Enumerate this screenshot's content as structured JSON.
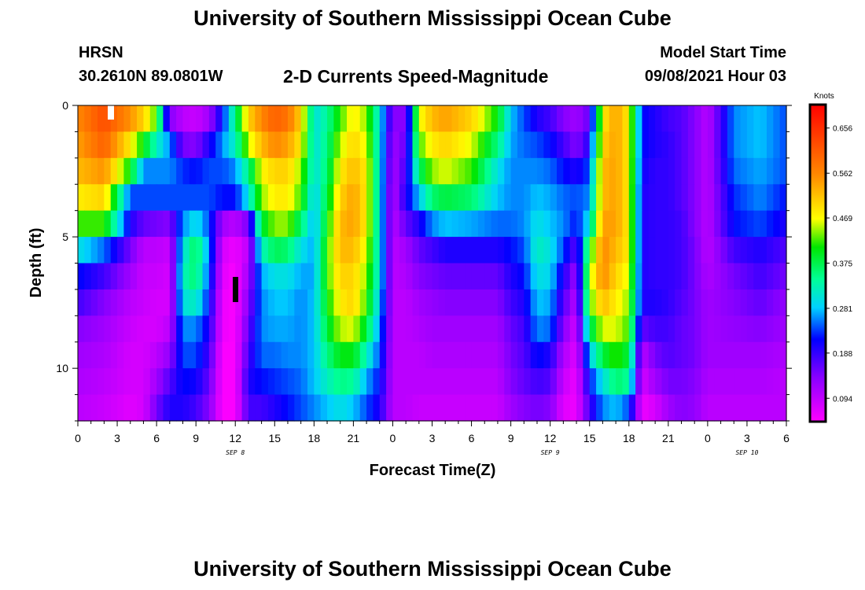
{
  "header": {
    "title": "University of Southern Mississippi Ocean Cube",
    "footer_title": "University of Southern Mississippi Ocean Cube",
    "station": "HRSN",
    "coords": "30.2610N  89.0801W",
    "plot_title": "2-D Currents Speed-Magnitude",
    "model_label": "Model Start Time",
    "model_time": "09/08/2021 Hour 03"
  },
  "chart_data": {
    "type": "heatmap",
    "title": "2-D Currents Speed-Magnitude",
    "xlabel": "Forecast Time(Z)",
    "ylabel": "Depth (ft)",
    "x_tick_labels": [
      "0",
      "3",
      "6",
      "9",
      "12",
      "15",
      "18",
      "21",
      "0",
      "3",
      "6",
      "9",
      "12",
      "15",
      "18",
      "21",
      "0",
      "3",
      "6"
    ],
    "x_hours": [
      0,
      54
    ],
    "y_ticks": [
      0,
      5,
      10
    ],
    "y_range": [
      0,
      12
    ],
    "date_labels": [
      {
        "text": "SEP 8",
        "hour": 12
      },
      {
        "text": "SEP 9",
        "hour": 36
      },
      {
        "text": "SEP 10",
        "hour": 51
      }
    ],
    "colorbar": {
      "unit": "Knots",
      "min": 0.047,
      "max": 0.703,
      "tick_values": [
        0.094,
        0.188,
        0.281,
        0.375,
        0.469,
        0.562,
        0.656
      ],
      "tick_labels": [
        "0.094",
        "0.188",
        "0.281",
        "0.375",
        "0.469",
        "0.562",
        "0.656"
      ]
    },
    "depth_rows": [
      0.5,
      1.5,
      2.5,
      3.5,
      4.5,
      5.5,
      6.5,
      7.5,
      8.5,
      9.5,
      10.5,
      11.5
    ],
    "profile_hours": [
      0,
      2,
      4,
      5,
      6,
      7,
      8,
      9,
      10,
      11,
      12,
      13,
      14,
      15,
      16,
      17,
      18,
      19,
      20,
      21,
      22,
      23,
      24,
      25,
      26,
      27,
      28,
      30,
      32,
      33,
      34,
      35,
      36,
      37,
      38,
      39,
      40,
      41,
      42,
      43,
      44,
      45,
      46,
      47,
      48,
      50,
      52,
      54
    ],
    "profiles": [
      [
        0.56,
        0.54,
        0.52,
        0.48,
        0.42,
        0.3,
        0.22,
        0.18,
        0.14,
        0.12,
        0.11,
        0.1
      ],
      [
        0.62,
        0.6,
        0.55,
        0.5,
        0.42,
        0.25,
        0.18,
        0.14,
        0.12,
        0.11,
        0.1,
        0.09
      ],
      [
        0.55,
        0.48,
        0.4,
        0.24,
        0.2,
        0.15,
        0.12,
        0.1,
        0.09,
        0.08,
        0.08,
        0.07
      ],
      [
        0.5,
        0.4,
        0.26,
        0.24,
        0.16,
        0.1,
        0.09,
        0.09,
        0.08,
        0.08,
        0.08,
        0.08
      ],
      [
        0.42,
        0.32,
        0.26,
        0.24,
        0.15,
        0.1,
        0.09,
        0.08,
        0.08,
        0.1,
        0.12,
        0.15
      ],
      [
        0.14,
        0.26,
        0.26,
        0.24,
        0.14,
        0.09,
        0.08,
        0.08,
        0.1,
        0.13,
        0.17,
        0.2
      ],
      [
        0.1,
        0.15,
        0.23,
        0.24,
        0.26,
        0.3,
        0.32,
        0.3,
        0.26,
        0.24,
        0.22,
        0.2
      ],
      [
        0.09,
        0.14,
        0.22,
        0.24,
        0.3,
        0.37,
        0.36,
        0.32,
        0.26,
        0.24,
        0.21,
        0.18
      ],
      [
        0.12,
        0.2,
        0.24,
        0.24,
        0.24,
        0.26,
        0.24,
        0.22,
        0.2,
        0.18,
        0.16,
        0.14
      ],
      [
        0.22,
        0.26,
        0.24,
        0.22,
        0.12,
        0.08,
        0.07,
        0.06,
        0.06,
        0.05,
        0.05,
        0.05
      ],
      [
        0.35,
        0.32,
        0.26,
        0.22,
        0.1,
        0.06,
        0.05,
        0.05,
        0.05,
        0.05,
        0.05,
        0.05
      ],
      [
        0.5,
        0.45,
        0.35,
        0.3,
        0.15,
        0.1,
        0.12,
        0.14,
        0.16,
        0.18,
        0.2,
        0.18
      ],
      [
        0.56,
        0.52,
        0.47,
        0.44,
        0.38,
        0.32,
        0.27,
        0.26,
        0.26,
        0.25,
        0.22,
        0.18
      ],
      [
        0.6,
        0.56,
        0.5,
        0.48,
        0.44,
        0.37,
        0.3,
        0.28,
        0.27,
        0.25,
        0.23,
        0.2
      ],
      [
        0.58,
        0.54,
        0.5,
        0.48,
        0.44,
        0.36,
        0.3,
        0.28,
        0.27,
        0.26,
        0.24,
        0.22
      ],
      [
        0.5,
        0.48,
        0.44,
        0.42,
        0.36,
        0.3,
        0.27,
        0.26,
        0.26,
        0.26,
        0.25,
        0.24
      ],
      [
        0.3,
        0.3,
        0.3,
        0.28,
        0.27,
        0.27,
        0.27,
        0.28,
        0.28,
        0.28,
        0.28,
        0.26
      ],
      [
        0.34,
        0.35,
        0.36,
        0.38,
        0.4,
        0.42,
        0.42,
        0.4,
        0.38,
        0.35,
        0.32,
        0.28
      ],
      [
        0.42,
        0.45,
        0.48,
        0.5,
        0.52,
        0.52,
        0.5,
        0.48,
        0.45,
        0.4,
        0.35,
        0.3
      ],
      [
        0.48,
        0.5,
        0.52,
        0.54,
        0.54,
        0.52,
        0.5,
        0.5,
        0.46,
        0.4,
        0.34,
        0.28
      ],
      [
        0.44,
        0.46,
        0.48,
        0.48,
        0.48,
        0.46,
        0.44,
        0.42,
        0.38,
        0.32,
        0.27,
        0.24
      ],
      [
        0.3,
        0.3,
        0.3,
        0.3,
        0.3,
        0.3,
        0.3,
        0.28,
        0.26,
        0.24,
        0.22,
        0.2
      ],
      [
        0.14,
        0.12,
        0.11,
        0.1,
        0.1,
        0.1,
        0.1,
        0.1,
        0.1,
        0.1,
        0.1,
        0.1
      ],
      [
        0.14,
        0.16,
        0.18,
        0.2,
        0.16,
        0.12,
        0.11,
        0.1,
        0.1,
        0.1,
        0.1,
        0.1
      ],
      [
        0.46,
        0.42,
        0.36,
        0.28,
        0.2,
        0.16,
        0.14,
        0.12,
        0.11,
        0.1,
        0.1,
        0.09
      ],
      [
        0.52,
        0.48,
        0.44,
        0.36,
        0.26,
        0.18,
        0.15,
        0.13,
        0.12,
        0.11,
        0.1,
        0.09
      ],
      [
        0.54,
        0.5,
        0.46,
        0.38,
        0.28,
        0.2,
        0.16,
        0.14,
        0.12,
        0.11,
        0.1,
        0.09
      ],
      [
        0.5,
        0.46,
        0.42,
        0.36,
        0.27,
        0.2,
        0.16,
        0.14,
        0.12,
        0.11,
        0.1,
        0.09
      ],
      [
        0.4,
        0.35,
        0.3,
        0.28,
        0.25,
        0.2,
        0.16,
        0.14,
        0.12,
        0.11,
        0.1,
        0.09
      ],
      [
        0.28,
        0.27,
        0.26,
        0.26,
        0.25,
        0.22,
        0.2,
        0.18,
        0.16,
        0.15,
        0.14,
        0.12
      ],
      [
        0.24,
        0.25,
        0.26,
        0.26,
        0.26,
        0.24,
        0.22,
        0.2,
        0.18,
        0.17,
        0.16,
        0.14
      ],
      [
        0.2,
        0.24,
        0.26,
        0.28,
        0.3,
        0.32,
        0.3,
        0.28,
        0.26,
        0.22,
        0.18,
        0.15
      ],
      [
        0.18,
        0.22,
        0.25,
        0.27,
        0.28,
        0.3,
        0.29,
        0.27,
        0.25,
        0.2,
        0.17,
        0.14
      ],
      [
        0.14,
        0.18,
        0.22,
        0.25,
        0.26,
        0.24,
        0.2,
        0.17,
        0.14,
        0.11,
        0.09,
        0.07
      ],
      [
        0.12,
        0.14,
        0.2,
        0.24,
        0.22,
        0.16,
        0.12,
        0.1,
        0.08,
        0.07,
        0.06,
        0.06
      ],
      [
        0.16,
        0.2,
        0.24,
        0.26,
        0.3,
        0.4,
        0.44,
        0.42,
        0.36,
        0.28,
        0.22,
        0.18
      ],
      [
        0.48,
        0.5,
        0.52,
        0.52,
        0.54,
        0.56,
        0.56,
        0.52,
        0.46,
        0.38,
        0.3,
        0.26
      ],
      [
        0.54,
        0.54,
        0.54,
        0.54,
        0.54,
        0.52,
        0.5,
        0.48,
        0.46,
        0.42,
        0.36,
        0.28
      ],
      [
        0.48,
        0.48,
        0.48,
        0.48,
        0.48,
        0.48,
        0.46,
        0.44,
        0.42,
        0.38,
        0.34,
        0.24
      ],
      [
        0.22,
        0.22,
        0.21,
        0.2,
        0.2,
        0.2,
        0.2,
        0.2,
        0.16,
        0.1,
        0.08,
        0.06
      ],
      [
        0.2,
        0.2,
        0.19,
        0.19,
        0.19,
        0.19,
        0.19,
        0.2,
        0.18,
        0.15,
        0.12,
        0.08
      ],
      [
        0.18,
        0.19,
        0.19,
        0.19,
        0.19,
        0.19,
        0.19,
        0.19,
        0.18,
        0.17,
        0.15,
        0.12
      ],
      [
        0.17,
        0.17,
        0.17,
        0.17,
        0.18,
        0.18,
        0.18,
        0.17,
        0.16,
        0.16,
        0.15,
        0.14
      ],
      [
        0.14,
        0.14,
        0.14,
        0.14,
        0.14,
        0.15,
        0.15,
        0.15,
        0.15,
        0.15,
        0.14,
        0.13
      ],
      [
        0.1,
        0.1,
        0.1,
        0.1,
        0.1,
        0.1,
        0.11,
        0.12,
        0.12,
        0.12,
        0.11,
        0.1
      ],
      [
        0.26,
        0.26,
        0.25,
        0.23,
        0.22,
        0.18,
        0.15,
        0.14,
        0.13,
        0.12,
        0.11,
        0.1
      ],
      [
        0.28,
        0.28,
        0.27,
        0.26,
        0.24,
        0.2,
        0.18,
        0.16,
        0.14,
        0.12,
        0.11,
        0.1
      ],
      [
        0.24,
        0.24,
        0.24,
        0.22,
        0.2,
        0.17,
        0.15,
        0.13,
        0.12,
        0.11,
        0.1,
        0.1
      ]
    ]
  }
}
